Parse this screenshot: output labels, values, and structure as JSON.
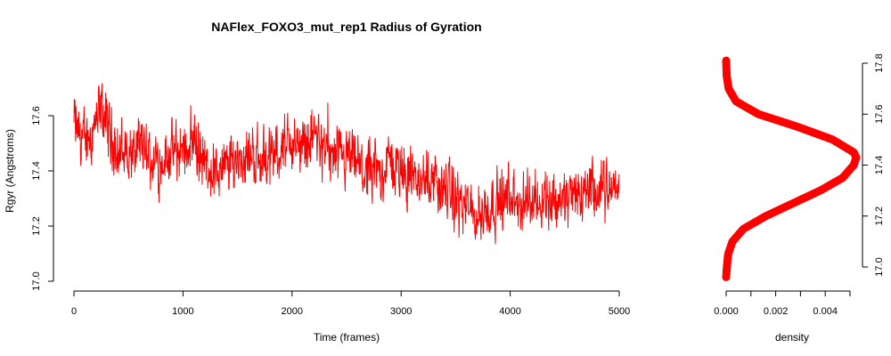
{
  "chart_data": [
    {
      "type": "line",
      "title": "NAFlex_FOXO3_mut_rep1 Radius of Gyration",
      "xlabel": "Time (frames)",
      "ylabel": "Rgyr (Angstroms)",
      "xlim": [
        0,
        5000
      ],
      "ylim": [
        17.0,
        17.8
      ],
      "x_ticks": [
        "0",
        "1000",
        "2000",
        "3000",
        "4000",
        "5000"
      ],
      "y_ticks": [
        "17.0",
        "17.2",
        "17.4",
        "17.6"
      ],
      "grid": false,
      "color": "#ff0000",
      "series": [
        {
          "x": [
            0,
            100,
            250,
            400,
            500,
            600,
            700,
            800,
            900,
            1000,
            1100,
            1200,
            1300,
            1400,
            1500,
            1600,
            1700,
            1800,
            1900,
            2000,
            2100,
            2200,
            2300,
            2400,
            2500,
            2600,
            2700,
            2800,
            2900,
            3000,
            3100,
            3200,
            3300,
            3400,
            3500,
            3600,
            3700,
            3800,
            3900,
            4000,
            4100,
            4200,
            4300,
            4400,
            4500,
            4600,
            4700,
            4800,
            4900,
            5000
          ],
          "values": [
            17.58,
            17.5,
            17.62,
            17.47,
            17.46,
            17.48,
            17.43,
            17.44,
            17.46,
            17.48,
            17.52,
            17.42,
            17.4,
            17.41,
            17.45,
            17.46,
            17.45,
            17.44,
            17.49,
            17.5,
            17.49,
            17.54,
            17.47,
            17.43,
            17.43,
            17.42,
            17.38,
            17.4,
            17.43,
            17.4,
            17.38,
            17.36,
            17.38,
            17.33,
            17.3,
            17.26,
            17.24,
            17.27,
            17.3,
            17.29,
            17.27,
            17.3,
            17.32,
            17.29,
            17.3,
            17.32,
            17.33,
            17.31,
            17.33,
            17.34
          ]
        }
      ]
    },
    {
      "type": "line",
      "title": "",
      "xlabel": "density",
      "ylabel": "",
      "xlim": [
        0,
        0.005
      ],
      "ylim": [
        17.0,
        17.8
      ],
      "x_ticks": [
        "0.000",
        "0.002",
        "0.004"
      ],
      "y_ticks": [
        "17.0",
        "17.2",
        "17.4",
        "17.6",
        "17.8"
      ],
      "y_axis_side": "right",
      "color": "#ff0000",
      "series": [
        {
          "y": [
            16.96,
            17.0,
            17.05,
            17.1,
            17.15,
            17.2,
            17.25,
            17.3,
            17.35,
            17.4,
            17.43,
            17.45,
            17.5,
            17.55,
            17.6,
            17.65,
            17.7,
            17.75,
            17.81
          ],
          "values": [
            0.0,
            3e-05,
            8e-05,
            0.00025,
            0.0007,
            0.0016,
            0.0027,
            0.0038,
            0.0047,
            0.00515,
            0.00525,
            0.00515,
            0.0043,
            0.0029,
            0.0013,
            0.0004,
            0.0001,
            2e-05,
            0.0
          ]
        }
      ]
    }
  ]
}
